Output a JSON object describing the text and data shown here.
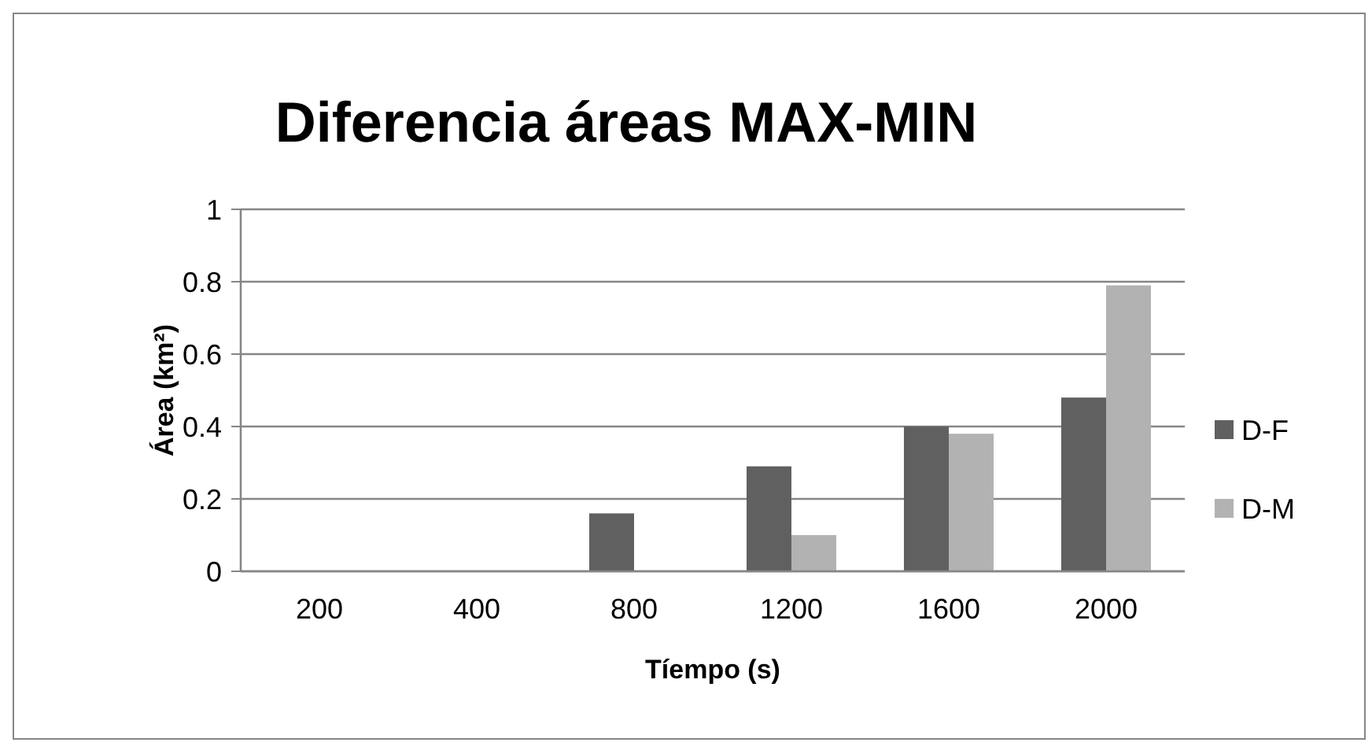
{
  "chart_data": {
    "type": "bar",
    "title": "Diferencia áreas MAX-MIN",
    "xlabel": "Tíempo (s)",
    "ylabel": "Área (km²)",
    "categories": [
      "200",
      "400",
      "800",
      "1200",
      "1600",
      "2000"
    ],
    "series": [
      {
        "name": "D-F",
        "color": "#606060",
        "values": [
          0,
          0.002,
          0.16,
          0.29,
          0.4,
          0.48
        ]
      },
      {
        "name": "D-M",
        "color": "#b2b2b2",
        "values": [
          0,
          0,
          0,
          0.1,
          0.38,
          0.79
        ]
      }
    ],
    "ylim": [
      0,
      1
    ],
    "yticks": [
      0,
      {
        "value": 0.2,
        "label": "0.2"
      },
      {
        "value": 0.4,
        "label": "0.4"
      },
      {
        "value": 0.6,
        "label": "0.6"
      },
      {
        "value": 0.8,
        "label": "0.8"
      },
      1
    ],
    "grid": "y",
    "legend": "right"
  }
}
